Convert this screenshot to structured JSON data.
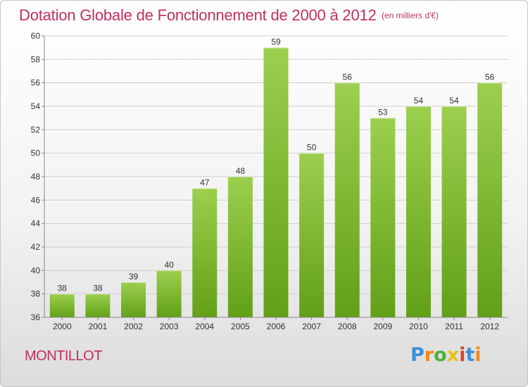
{
  "header": {
    "title": "Dotation Globale de Fonctionnement de 2000 à 2012",
    "unit": "(en milliers d'€)"
  },
  "footer": {
    "commune": "MONTILLOT",
    "logo_text": "Proxiti"
  },
  "colors": {
    "bar_light": "#9ccf4e",
    "bar_dark": "#62a018",
    "title": "#c0305f",
    "grid": "#cfcfcf"
  },
  "chart_data": {
    "type": "bar",
    "categories": [
      "2000",
      "2001",
      "2002",
      "2003",
      "2004",
      "2005",
      "2006",
      "2007",
      "2008",
      "2009",
      "2010",
      "2011",
      "2012"
    ],
    "values": [
      38,
      38,
      39,
      40,
      47,
      48,
      59,
      50,
      56,
      53,
      54,
      54,
      56
    ],
    "ylim": [
      36,
      60
    ],
    "yticks": [
      36,
      38,
      40,
      42,
      44,
      46,
      48,
      50,
      52,
      54,
      56,
      58,
      60
    ],
    "grid": true,
    "legend": "none"
  }
}
